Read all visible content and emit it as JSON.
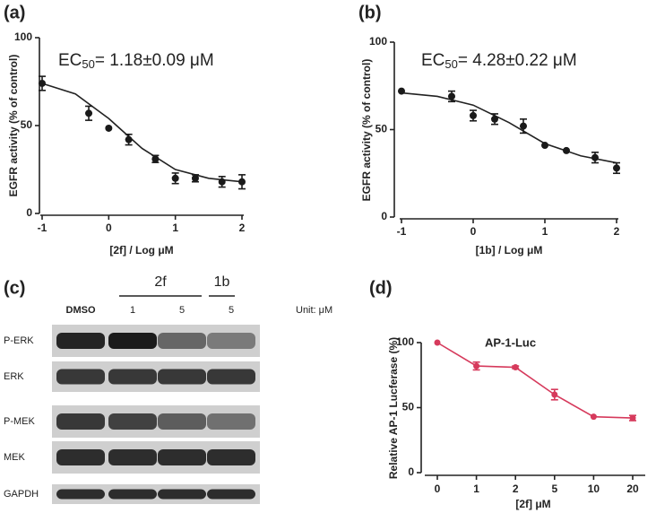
{
  "chart_data": [
    {
      "type": "scatter",
      "panel_label": "(a)",
      "annotation": {
        "prefix": "EC",
        "subscript": "50",
        "text": "= 1.18±0.09 μM"
      },
      "x_label": "[2f] / Log μM",
      "y_label": "EGFR activity (% of control)",
      "xlim": [
        -1,
        2
      ],
      "ylim": [
        0,
        100
      ],
      "xticks": [
        -1,
        0,
        1,
        2
      ],
      "yticks": [
        0,
        50,
        100
      ],
      "series": [
        {
          "color": "#1a1a1a",
          "x": [
            -1,
            -0.3,
            0,
            0.3,
            0.7,
            1,
            1.3,
            1.7,
            2
          ],
          "values": [
            74,
            57,
            48.5,
            42,
            31,
            20,
            20,
            18,
            18
          ],
          "errors": [
            4,
            4,
            0,
            3,
            2,
            3,
            2,
            3,
            4
          ]
        }
      ],
      "fit": {
        "x": [
          -1,
          -0.5,
          0,
          0.5,
          1,
          1.5,
          2
        ],
        "values": [
          74,
          68,
          54,
          37,
          25,
          20,
          18
        ]
      }
    },
    {
      "type": "scatter",
      "panel_label": "(b)",
      "annotation": {
        "prefix": "EC",
        "subscript": "50",
        "text": "= 4.28±0.22 μM"
      },
      "x_label": "[1b] / Log μM",
      "y_label": "EGFR activity (% of control)",
      "xlim": [
        -1,
        2
      ],
      "ylim": [
        0,
        100
      ],
      "xticks": [
        -1,
        0,
        1,
        2
      ],
      "yticks": [
        0,
        50,
        100
      ],
      "series": [
        {
          "color": "#1a1a1a",
          "x": [
            -1,
            -0.3,
            0,
            0.3,
            0.7,
            1,
            1.3,
            1.7,
            2
          ],
          "values": [
            72,
            69,
            58,
            56,
            52,
            41,
            38,
            34,
            28
          ],
          "errors": [
            0,
            3,
            3,
            3,
            4,
            0,
            0,
            3,
            3
          ]
        }
      ],
      "fit": {
        "x": [
          -1,
          -0.5,
          0,
          0.5,
          1,
          1.5,
          2
        ],
        "values": [
          71,
          69,
          64,
          54,
          42,
          35,
          31
        ]
      }
    },
    {
      "type": "line",
      "panel_label": "(d)",
      "annotation": "AP-1-Luc",
      "x_label": "[2f] μM",
      "y_label": "Relative AP-1 Lucferase (%)",
      "categories": [
        "0",
        "1",
        "2",
        "5",
        "10",
        "20"
      ],
      "ylim": [
        0,
        100
      ],
      "yticks": [
        0,
        50,
        100
      ],
      "series": [
        {
          "color": "#d63a5c",
          "values": [
            100,
            82,
            81,
            60,
            43,
            42
          ],
          "errors": [
            0,
            3,
            1,
            4,
            0,
            2
          ]
        }
      ]
    }
  ],
  "blot": {
    "panel_label": "(c)",
    "lane_labels": [
      "DMSO",
      "1",
      "5",
      "5"
    ],
    "groups": [
      "2f",
      "1b"
    ],
    "unit": "Unit: μM",
    "rows": [
      "P-ERK",
      "ERK",
      "P-MEK",
      "MEK",
      "GAPDH"
    ]
  }
}
